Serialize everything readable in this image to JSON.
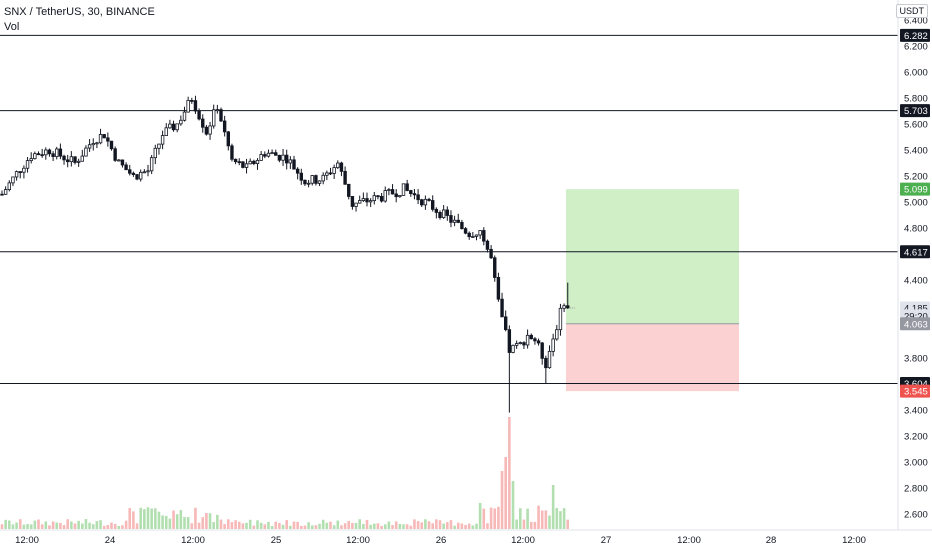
{
  "header": {
    "symbol_line": "SNX / TetherUS, 30, BINANCE",
    "volume_label": "Vol",
    "currency": "USDT"
  },
  "colors": {
    "up": "#26a69a",
    "down": "#ef5350",
    "candle": "#131722",
    "vol_up": "#b2dfb0",
    "vol_down": "#f7b8b8",
    "profit_zone": "#c8ecbc",
    "loss_zone": "#fbc9c9",
    "line": "#131722"
  },
  "chart_data": {
    "type": "candlestick",
    "title": "SNX / TetherUS, 30, BINANCE",
    "ylim": [
      2.5,
      6.45
    ],
    "y_ticks": [
      "6.400",
      "6.200",
      "6.000",
      "5.800",
      "5.600",
      "5.400",
      "5.200",
      "5.000",
      "4.800",
      "4.400",
      "4.200",
      "3.800",
      "3.400",
      "3.200",
      "3.000",
      "2.800",
      "2.600"
    ],
    "x_ticks": [
      "12:00",
      "24",
      "12:00",
      "25",
      "12:00",
      "26",
      "12:00",
      "27",
      "12:00",
      "28",
      "12:00"
    ],
    "horizontal_lines": [
      6.282,
      5.703,
      4.617,
      3.604
    ],
    "price_labels": [
      {
        "text": "6.282",
        "value": 6.282,
        "style": "dark"
      },
      {
        "text": "5.703",
        "value": 5.703,
        "style": "dark"
      },
      {
        "text": "5.099",
        "value": 5.099,
        "style": "green"
      },
      {
        "text": "4.617",
        "value": 4.617,
        "style": "dark"
      },
      {
        "text": "4.185",
        "value": 4.185,
        "style": "light"
      },
      {
        "text": "29:20",
        "value": 4.124,
        "style": "light"
      },
      {
        "text": "4.063",
        "value": 4.063,
        "style": "gray"
      },
      {
        "text": "3.604",
        "value": 3.604,
        "style": "dark"
      },
      {
        "text": "3.545",
        "value": 3.545,
        "style": "red"
      }
    ],
    "position": {
      "entry": 4.063,
      "target": 5.099,
      "stop": 3.545
    },
    "price_path": [
      {
        "t": 0,
        "price": 5.06
      },
      {
        "t": 4,
        "price": 5.22
      },
      {
        "t": 8,
        "price": 5.36
      },
      {
        "t": 13,
        "price": 5.4
      },
      {
        "t": 20,
        "price": 5.3
      },
      {
        "t": 25,
        "price": 5.48
      },
      {
        "t": 28,
        "price": 5.52
      },
      {
        "t": 32,
        "price": 5.3
      },
      {
        "t": 36,
        "price": 5.2
      },
      {
        "t": 40,
        "price": 5.24
      },
      {
        "t": 44,
        "price": 5.52
      },
      {
        "t": 48,
        "price": 5.6
      },
      {
        "t": 52,
        "price": 5.8
      },
      {
        "t": 56,
        "price": 5.54
      },
      {
        "t": 59,
        "price": 5.74
      },
      {
        "t": 63,
        "price": 5.32
      },
      {
        "t": 67,
        "price": 5.26
      },
      {
        "t": 72,
        "price": 5.38
      },
      {
        "t": 78,
        "price": 5.34
      },
      {
        "t": 83,
        "price": 5.16
      },
      {
        "t": 88,
        "price": 5.18
      },
      {
        "t": 92,
        "price": 5.3
      },
      {
        "t": 96,
        "price": 4.98
      },
      {
        "t": 104,
        "price": 5.04
      },
      {
        "t": 110,
        "price": 5.1
      },
      {
        "t": 116,
        "price": 5.0
      },
      {
        "t": 122,
        "price": 4.88
      },
      {
        "t": 128,
        "price": 4.76
      },
      {
        "t": 131,
        "price": 4.78
      },
      {
        "t": 134,
        "price": 4.56
      },
      {
        "t": 136,
        "price": 4.22
      },
      {
        "t": 139,
        "price": 3.86
      },
      {
        "t": 142,
        "price": 3.9
      },
      {
        "t": 144,
        "price": 3.98
      },
      {
        "t": 146,
        "price": 3.94
      },
      {
        "t": 149,
        "price": 3.76
      },
      {
        "t": 152,
        "price": 4.05
      },
      {
        "t": 154,
        "price": 4.24
      },
      {
        "t": 155,
        "price": 4.18
      }
    ],
    "special_wicks": [
      {
        "t": 139,
        "low": 3.38
      },
      {
        "t": 149,
        "low": 3.6
      },
      {
        "t": 155,
        "high": 4.38
      }
    ]
  }
}
